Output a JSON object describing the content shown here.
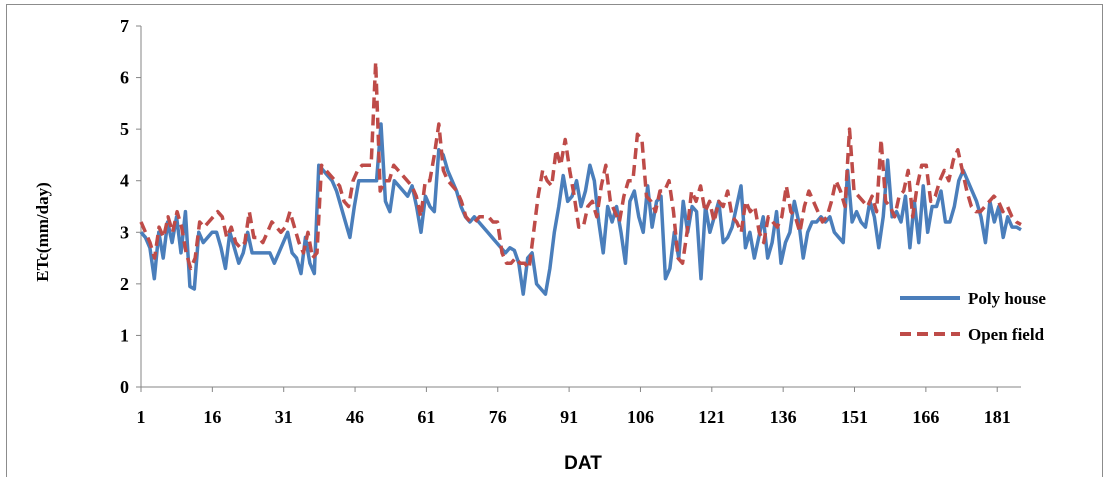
{
  "chart_data": {
    "type": "line",
    "title": "",
    "xlabel": "DAT",
    "ylabel": "ETc(mm/day)",
    "ylim": [
      0,
      7
    ],
    "yticks": [
      "0",
      "1",
      "2",
      "3",
      "4",
      "5",
      "6",
      "7"
    ],
    "xlim": [
      1,
      186
    ],
    "xticks": [
      1,
      16,
      31,
      46,
      61,
      76,
      91,
      106,
      121,
      136,
      151,
      166,
      181
    ],
    "grid": false,
    "legend_position": "right",
    "series": [
      {
        "name": "Poly house",
        "color": "#4a7ebb",
        "style": "solid",
        "values": [
          3.0,
          2.9,
          2.7,
          2.1,
          3.0,
          2.5,
          3.2,
          2.8,
          3.3,
          2.6,
          3.4,
          1.95,
          1.9,
          3.0,
          2.8,
          2.9,
          3.0,
          3.0,
          2.7,
          2.3,
          3.0,
          2.7,
          2.4,
          2.6,
          3.0,
          2.6,
          2.6,
          2.6,
          2.6,
          2.6,
          2.4,
          2.6,
          2.8,
          3.0,
          2.6,
          2.5,
          2.2,
          2.9,
          2.4,
          2.2,
          4.3,
          4.2,
          4.1,
          4.0,
          3.8,
          3.5,
          3.2,
          2.9,
          3.5,
          4.0,
          4.0,
          4.0,
          4.0,
          4.0,
          5.1,
          3.6,
          3.4,
          4.0,
          3.9,
          3.8,
          3.7,
          3.9,
          3.5,
          3.0,
          3.7,
          3.5,
          3.4,
          4.6,
          4.5,
          4.2,
          4.0,
          3.8,
          3.5,
          3.3,
          3.2,
          3.3,
          3.2,
          3.1,
          3.0,
          2.9,
          2.8,
          2.7,
          2.6,
          2.7,
          2.65,
          2.4,
          1.8,
          2.5,
          2.6,
          2.0,
          1.9,
          1.8,
          2.3,
          3.0,
          3.5,
          4.1,
          3.6,
          3.7,
          4.0,
          3.5,
          3.8,
          4.3,
          4.0,
          3.2,
          2.6,
          3.5,
          3.2,
          3.5,
          3.0,
          2.4,
          3.6,
          3.8,
          3.3,
          3.0,
          3.9,
          3.1,
          3.6,
          3.7,
          2.1,
          2.3,
          3.0,
          2.5,
          3.6,
          3.0,
          3.5,
          3.4,
          2.1,
          3.5,
          3.0,
          3.3,
          3.6,
          2.8,
          2.9,
          3.1,
          3.5,
          3.9,
          2.7,
          3.0,
          2.5,
          2.9,
          3.3,
          2.5,
          2.8,
          3.4,
          2.4,
          2.8,
          3.0,
          3.6,
          3.2,
          2.5,
          3.0,
          3.2,
          3.2,
          3.3,
          3.2,
          3.3,
          3.0,
          2.9,
          2.8,
          4.2,
          3.2,
          3.4,
          3.2,
          3.1,
          3.6,
          3.3,
          2.7,
          3.3,
          4.4,
          3.3,
          3.4,
          3.2,
          3.7,
          2.7,
          3.6,
          2.8,
          3.9,
          3.0,
          3.5,
          3.5,
          3.8,
          3.2,
          3.2,
          3.5,
          4.0,
          4.2,
          4.0,
          3.8,
          3.6,
          3.3,
          2.8,
          3.6,
          3.2,
          3.5,
          2.9,
          3.3,
          3.1,
          3.1,
          3.05
        ]
      },
      {
        "name": "Open field",
        "color": "#be4b48",
        "style": "dashed",
        "values": [
          3.2,
          3.0,
          2.8,
          2.5,
          3.1,
          2.9,
          3.3,
          3.0,
          3.4,
          3.1,
          2.6,
          2.3,
          2.5,
          3.2,
          3.1,
          3.2,
          3.3,
          3.4,
          3.3,
          2.9,
          3.1,
          2.8,
          2.7,
          2.8,
          3.4,
          2.9,
          2.9,
          2.8,
          3.0,
          3.2,
          3.1,
          3.0,
          3.1,
          3.4,
          3.1,
          2.8,
          2.6,
          3.0,
          2.5,
          2.6,
          4.3,
          4.2,
          4.1,
          4.0,
          3.9,
          3.6,
          3.5,
          4.0,
          4.2,
          4.3,
          4.3,
          4.3,
          6.3,
          3.8,
          4.0,
          4.0,
          4.3,
          4.2,
          4.1,
          4.0,
          3.9,
          3.7,
          3.3,
          4.0,
          4.0,
          4.5,
          5.1,
          4.2,
          4.0,
          3.9,
          3.8,
          3.6,
          3.3,
          3.2,
          3.2,
          3.3,
          3.3,
          3.3,
          3.2,
          3.2,
          2.6,
          2.4,
          2.4,
          2.5,
          2.4,
          2.4,
          2.3,
          3.0,
          3.7,
          4.2,
          4.0,
          3.9,
          4.6,
          4.3,
          4.8,
          4.2,
          3.7,
          3.1,
          3.1,
          3.5,
          3.6,
          3.3,
          3.9,
          4.3,
          3.6,
          3.4,
          3.2,
          3.7,
          4.0,
          4.0,
          4.9,
          4.8,
          3.7,
          3.6,
          3.4,
          3.8,
          3.8,
          4.0,
          3.4,
          2.5,
          2.4,
          3.0,
          3.8,
          3.6,
          3.9,
          3.4,
          3.6,
          3.2,
          3.6,
          3.5,
          3.8,
          3.3,
          3.2,
          3.0,
          3.6,
          3.4,
          3.5,
          3.0,
          2.8,
          3.3,
          3.2,
          3.1,
          3.3,
          3.9,
          3.4,
          3.3,
          3.0,
          3.5,
          3.8,
          3.6,
          3.4,
          3.2,
          3.3,
          3.6,
          4.0,
          3.8,
          3.5,
          5.0,
          3.8,
          3.7,
          3.6,
          3.5,
          3.7,
          3.4,
          4.8,
          3.6,
          3.5,
          3.3,
          3.7,
          3.8,
          4.2,
          3.3,
          3.9,
          4.3,
          4.3,
          3.6,
          3.7,
          4.0,
          4.2,
          4.0,
          4.4,
          4.6,
          4.2,
          3.8,
          3.5,
          3.4,
          3.4,
          3.5,
          3.6,
          3.7,
          3.6,
          3.4,
          3.5,
          3.3,
          3.2,
          3.15
        ]
      }
    ]
  }
}
